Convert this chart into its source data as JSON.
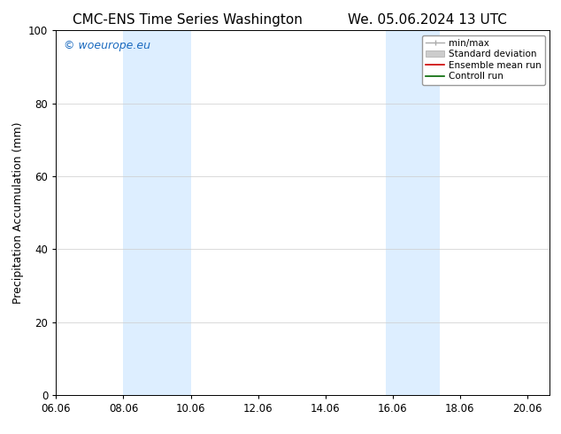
{
  "title_left": "CMC-ENS Time Series Washington",
  "title_right": "We. 05.06.2024 13 UTC",
  "ylabel": "Precipitation Accumulation (mm)",
  "watermark": "© woeurope.eu",
  "watermark_color": "#1a6abf",
  "ylim": [
    0,
    100
  ],
  "yticks": [
    0,
    20,
    40,
    60,
    80,
    100
  ],
  "xtick_labels": [
    "06.06",
    "08.06",
    "10.06",
    "12.06",
    "14.06",
    "16.06",
    "18.06",
    "20.06"
  ],
  "xtick_positions": [
    0,
    2,
    4,
    6,
    8,
    10,
    12,
    14
  ],
  "xlim": [
    0,
    14.67
  ],
  "shaded_regions": [
    {
      "x_start": 2.0,
      "x_end": 4.0,
      "color": "#ddeeff"
    },
    {
      "x_start": 9.8,
      "x_end": 11.4,
      "color": "#ddeeff"
    }
  ],
  "background_color": "#ffffff",
  "grid_color": "#cccccc",
  "title_fontsize": 11,
  "axis_fontsize": 9,
  "tick_fontsize": 8.5,
  "watermark_fontsize": 9
}
